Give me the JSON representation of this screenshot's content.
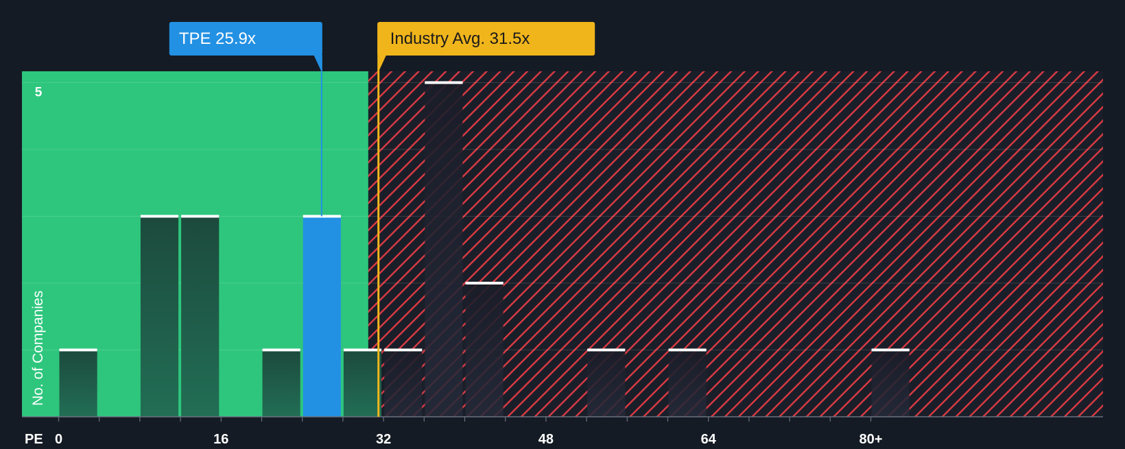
{
  "chart_data": {
    "type": "bar",
    "title": "",
    "xlabel": "PE",
    "ylabel": "No. of Companies",
    "x_ticks": [
      "0",
      "16",
      "32",
      "48",
      "64",
      "80+"
    ],
    "y_ticks": [
      "5"
    ],
    "xlim": [
      0,
      82
    ],
    "ylim": [
      0,
      5.2
    ],
    "bin_width": 4,
    "bins": [
      {
        "x": 0,
        "value": 1
      },
      {
        "x": 8,
        "value": 3
      },
      {
        "x": 12,
        "value": 3
      },
      {
        "x": 20,
        "value": 1
      },
      {
        "x": 24,
        "value": 3,
        "highlight": true
      },
      {
        "x": 28,
        "value": 1
      },
      {
        "x": 32,
        "value": 1
      },
      {
        "x": 36,
        "value": 5
      },
      {
        "x": 40,
        "value": 2
      },
      {
        "x": 52,
        "value": 1
      },
      {
        "x": 60,
        "value": 1
      },
      {
        "x": 80,
        "value": 1
      }
    ],
    "company": {
      "label": "TPE 25.9x",
      "value": 25.9
    },
    "industry_avg": {
      "label": "Industry Avg. 31.5x",
      "value": 31.5
    },
    "colors": {
      "background": "#151b24",
      "undervalued_zone": "#2ec67d",
      "overvalued_zone": "#8b2b33",
      "hatch": "#e0404a",
      "company_bar": "#2391e3",
      "company_label_bg": "#2391e3",
      "industry_label_bg": "#f0b51b",
      "industry_line": "#f0b51b",
      "bar_cap": "#ffffff"
    }
  }
}
